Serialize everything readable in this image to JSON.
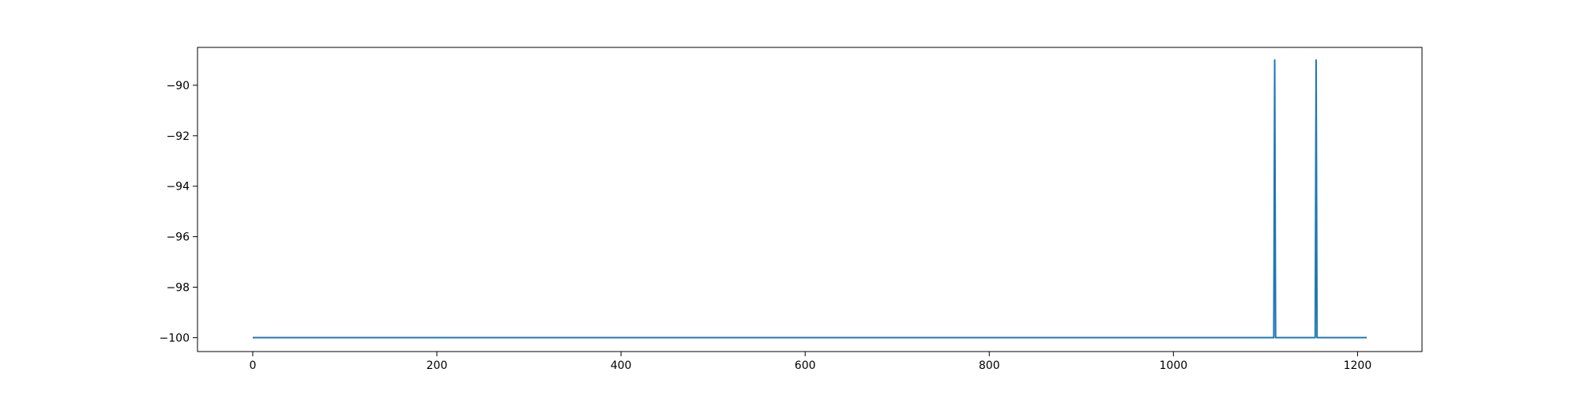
{
  "chart_data": {
    "type": "line",
    "title": "",
    "xlabel": "",
    "ylabel": "",
    "xlim": [
      -60,
      1270
    ],
    "ylim": [
      -100.55,
      -88.5
    ],
    "grid": false,
    "legend": "none",
    "xticks": [
      0,
      200,
      400,
      600,
      800,
      1000,
      1200
    ],
    "xtick_labels": [
      "0",
      "200",
      "400",
      "600",
      "800",
      "1000",
      "1200"
    ],
    "yticks": [
      -90,
      -92,
      -94,
      -96,
      -98,
      -100
    ],
    "ytick_labels": [
      "−90",
      "−92",
      "−94",
      "−96",
      "−98",
      "−100"
    ],
    "series": [
      {
        "color": "#1f77b4",
        "points": [
          [
            0,
            -100
          ],
          [
            1109,
            -100
          ],
          [
            1110,
            -89
          ],
          [
            1111,
            -100
          ],
          [
            1154,
            -100
          ],
          [
            1155,
            -89
          ],
          [
            1156,
            -100
          ],
          [
            1210,
            -100
          ]
        ]
      }
    ]
  }
}
